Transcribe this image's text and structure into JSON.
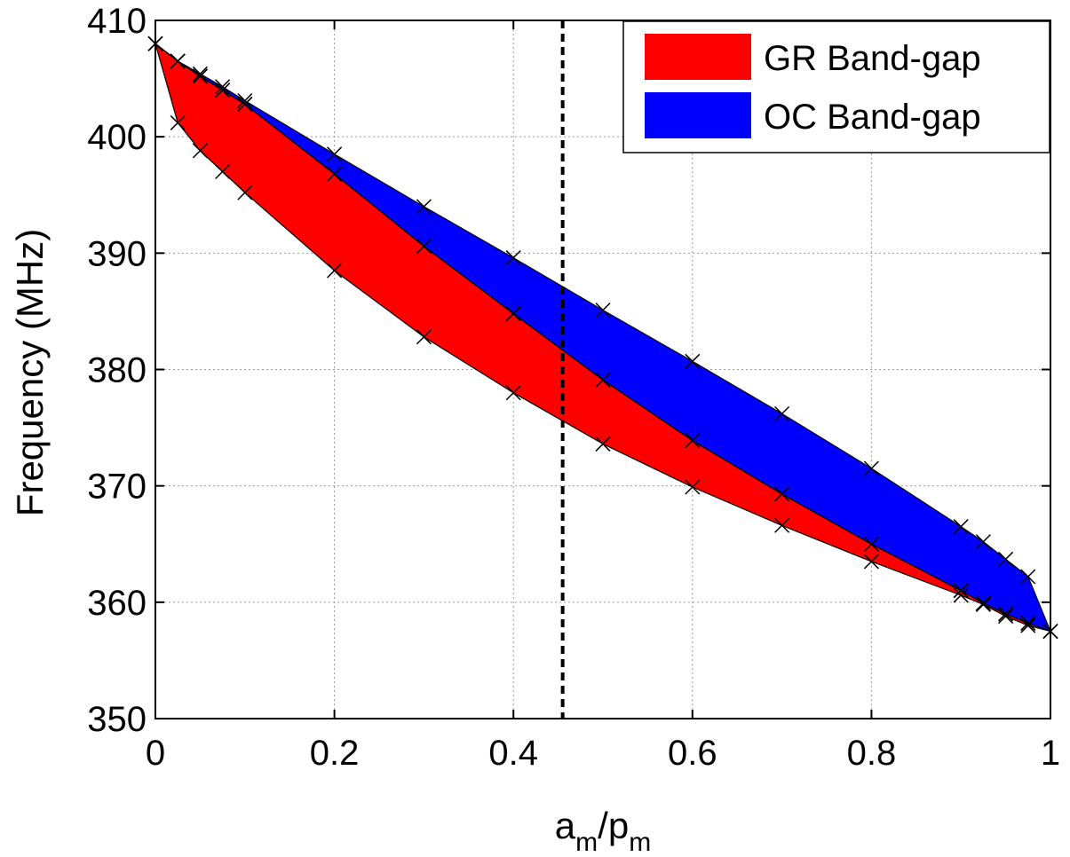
{
  "chart_data": {
    "type": "area",
    "xlabel": {
      "main": "a",
      "sub1": "m",
      "mid": "/p",
      "sub2": "m"
    },
    "ylabel": "Frequency (MHz)",
    "xlim": [
      0,
      1
    ],
    "ylim": [
      350,
      410
    ],
    "xticks": [
      0,
      0.2,
      0.4,
      0.6,
      0.8,
      1
    ],
    "xtick_labels": [
      "0",
      "0.2",
      "0.4",
      "0.6",
      "0.8",
      "1"
    ],
    "yticks": [
      350,
      360,
      370,
      380,
      390,
      400,
      410
    ],
    "ytick_labels": [
      "350",
      "360",
      "370",
      "380",
      "390",
      "400",
      "410"
    ],
    "grid": true,
    "legend_position": "top-right",
    "vline_x": 0.455,
    "colors": {
      "gr": "#ff0000",
      "oc": "#0000ff",
      "edge": "#000000"
    },
    "series": [
      {
        "name": "GR Band-gap",
        "color": "#ff0000",
        "x": [
          0,
          0.025,
          0.05,
          0.075,
          0.1,
          0.2,
          0.3,
          0.4,
          0.5,
          0.6,
          0.7,
          0.8,
          0.9,
          0.925,
          0.95,
          0.975,
          1
        ],
        "lower": [
          408,
          401.2,
          398.8,
          397,
          395.2,
          388.5,
          382.8,
          378,
          373.6,
          369.9,
          366.6,
          363.5,
          360.6,
          359.8,
          358.8,
          358,
          357.5
        ],
        "upper": [
          408,
          406.5,
          405.2,
          404,
          402.8,
          396.8,
          390.6,
          384.8,
          379.1,
          373.9,
          369.3,
          365,
          361,
          359.9,
          359,
          358.2,
          357.5
        ]
      },
      {
        "name": "OC Band-gap",
        "color": "#0000ff",
        "x": [
          0,
          0.025,
          0.05,
          0.075,
          0.1,
          0.2,
          0.3,
          0.4,
          0.5,
          0.6,
          0.7,
          0.8,
          0.9,
          0.925,
          0.95,
          0.975,
          1
        ],
        "lower": [
          408,
          406.5,
          405.2,
          404,
          402.8,
          396.8,
          390.6,
          384.8,
          379.1,
          373.9,
          369.3,
          365,
          361,
          359.9,
          359,
          358.2,
          357.5
        ],
        "upper": [
          408,
          406.5,
          405.4,
          404.3,
          403.1,
          398.5,
          394,
          389.6,
          385.1,
          380.7,
          376.2,
          371.5,
          366.5,
          365.2,
          363.7,
          362.2,
          357.5
        ]
      }
    ]
  }
}
